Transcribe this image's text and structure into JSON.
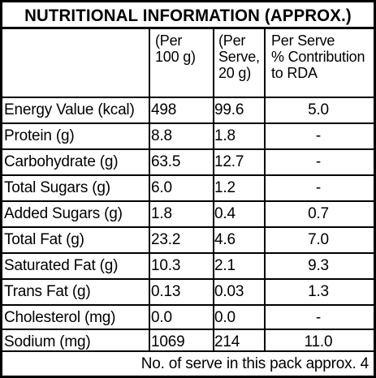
{
  "title": "NUTRITIONAL INFORMATION (APPROX.)",
  "headers": {
    "per100": [
      "(Per",
      "100 g)"
    ],
    "perServe": [
      "(Per",
      "Serve,",
      "20 g)"
    ],
    "rda": [
      "Per Serve",
      "% Contribution",
      "to RDA"
    ]
  },
  "rows": [
    {
      "name": "Energy Value (kcal)",
      "per100": "498",
      "perServe": "99.6",
      "rda": "5.0"
    },
    {
      "name": "Protein (g)",
      "per100": "8.8",
      "perServe": "1.8",
      "rda": "-"
    },
    {
      "name": "Carbohydrate (g)",
      "per100": "63.5",
      "perServe": "12.7",
      "rda": "-"
    },
    {
      "name": "Total Sugars (g)",
      "per100": "6.0",
      "perServe": "1.2",
      "rda": "-"
    },
    {
      "name": "Added Sugars (g)",
      "per100": "1.8",
      "perServe": "0.4",
      "rda": "0.7"
    },
    {
      "name": "Total Fat (g)",
      "per100": "23.2",
      "perServe": "4.6",
      "rda": "7.0"
    },
    {
      "name": "Saturated Fat (g)",
      "per100": "10.3",
      "perServe": "2.1",
      "rda": "9.3"
    },
    {
      "name": "Trans Fat (g)",
      "per100": "0.13",
      "perServe": "0.03",
      "rda": "1.3"
    },
    {
      "name": "Cholesterol (mg)",
      "per100": "0.0",
      "perServe": "0.0",
      "rda": "-"
    },
    {
      "name": "Sodium (mg)",
      "per100": "1069",
      "perServe": "214",
      "rda": "11.0"
    }
  ],
  "footer": "No. of serve in this pack approx. 4"
}
